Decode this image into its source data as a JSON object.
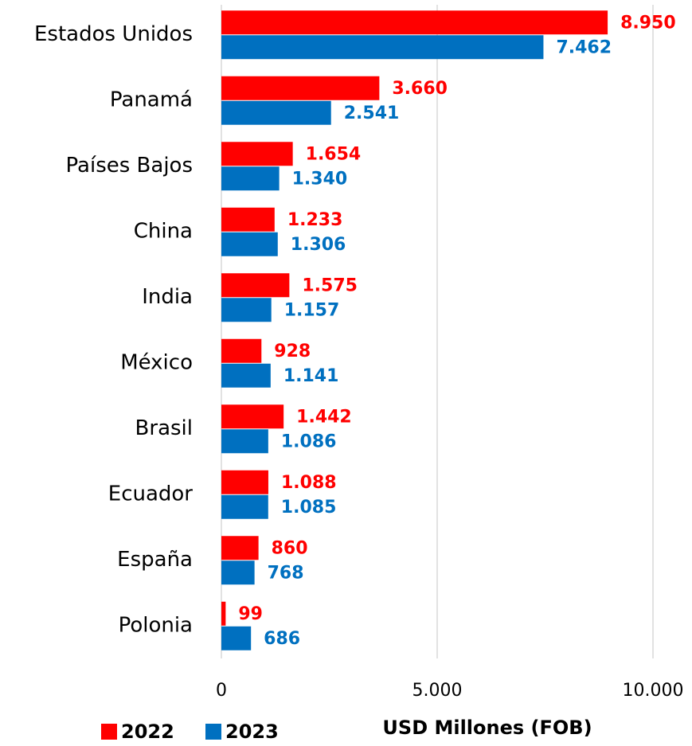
{
  "chart_data": {
    "type": "hbar",
    "categories": [
      "Estados Unidos",
      "Panamá",
      "Países Bajos",
      "China",
      "India",
      "México",
      "Brasil",
      "Ecuador",
      "España",
      "Polonia"
    ],
    "series": [
      {
        "name": "2022",
        "color": "#ff0000",
        "values": [
          8950,
          3660,
          1654,
          1233,
          1575,
          928,
          1442,
          1088,
          860,
          99
        ],
        "value_labels": [
          "8.950",
          "3.660",
          "1.654",
          "1.233",
          "1.575",
          "928",
          "1.442",
          "1.088",
          "860",
          "99"
        ]
      },
      {
        "name": "2023",
        "color": "#0070c0",
        "values": [
          7462,
          2541,
          1340,
          1306,
          1157,
          1141,
          1086,
          1085,
          768,
          686
        ],
        "value_labels": [
          "7.462",
          "2.541",
          "1.340",
          "1.306",
          "1.157",
          "1.141",
          "1.086",
          "1.085",
          "768",
          "686"
        ]
      }
    ],
    "xlabel": "USD Millones (FOB)",
    "xlim": [
      0,
      10000
    ],
    "xticks": [
      0,
      {
        "value": 5000,
        "label": "5.000"
      },
      {
        "value": 10000,
        "label": "10.000"
      }
    ],
    "grid": true,
    "legend": "bottom-left"
  }
}
